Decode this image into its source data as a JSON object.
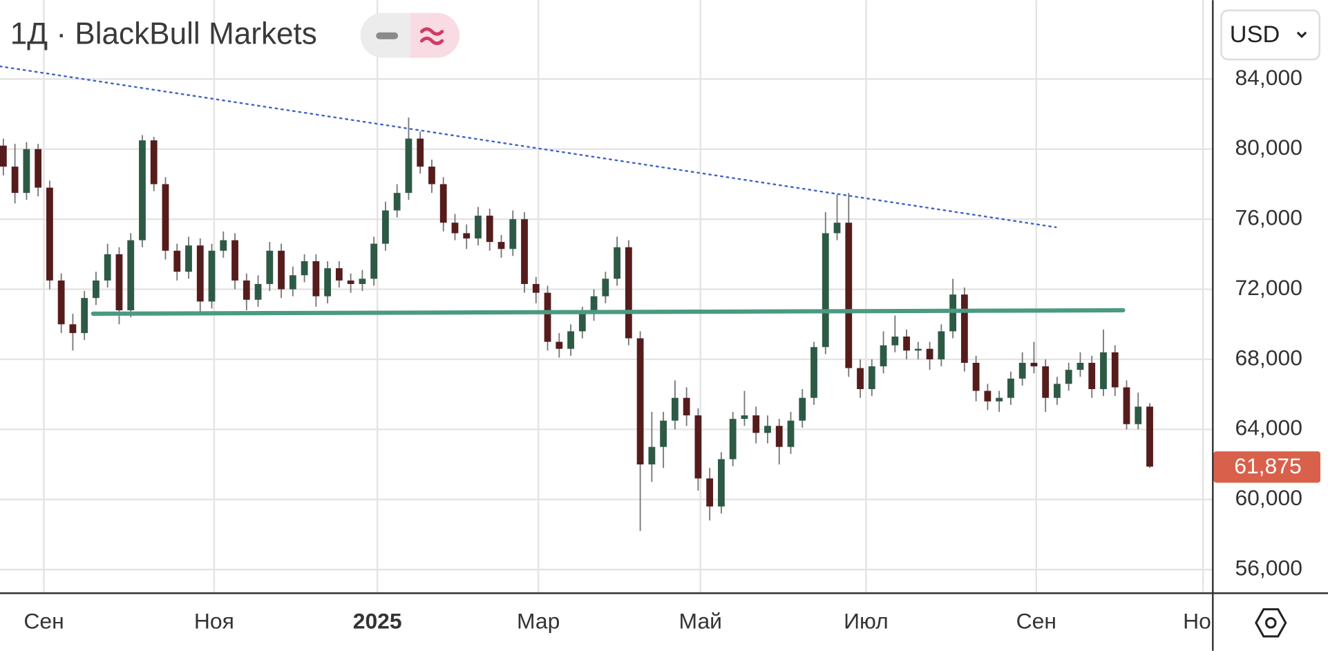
{
  "chart_data": {
    "type": "candlestick",
    "title": "1Д · BlackBull Markets",
    "currency": "USD",
    "xlim": [
      -0.29,
      104.3
    ],
    "xticks": [
      {
        "value": 3.5,
        "label": "Сен"
      },
      {
        "value": 18.2,
        "label": "Ноя"
      },
      {
        "value": 32.3,
        "label": "2025"
      },
      {
        "value": 46.2,
        "label": "Мар"
      },
      {
        "value": 60.2,
        "label": "Май"
      },
      {
        "value": 74.5,
        "label": "Июл"
      },
      {
        "value": 89.2,
        "label": "Сен"
      },
      {
        "value": 103.6,
        "label": "Ноя"
      }
    ],
    "ylim": [
      54650,
      88500
    ],
    "yticks": [
      {
        "value": 56000,
        "label": "56,000"
      },
      {
        "value": 60000,
        "label": "60,000"
      },
      {
        "value": 64000,
        "label": "64,000"
      },
      {
        "value": 68000,
        "label": "68,000"
      },
      {
        "value": 72000,
        "label": "72,000"
      },
      {
        "value": 76000,
        "label": "76,000"
      },
      {
        "value": 80000,
        "label": "80,000"
      },
      {
        "value": 84000,
        "label": "84,000"
      }
    ],
    "grid": true,
    "up_color": "#2d5a45",
    "down_color": "#561c1c",
    "wick_color": "#777777",
    "open": [
      80200,
      79000,
      77500,
      80000,
      77800,
      72500,
      70000,
      69500,
      71500,
      72500,
      74000,
      70800,
      74800,
      80500,
      78000,
      74200,
      73000,
      74500,
      71300,
      74200,
      74800,
      72500,
      71400,
      72300,
      74200,
      72000,
      72800,
      73600,
      71600,
      73200,
      72500,
      72300,
      72600,
      74600,
      76500,
      77500,
      80600,
      79000,
      78000,
      75800,
      75200,
      74900,
      76200,
      74700,
      74300,
      76000,
      72300,
      71800,
      69000,
      68600,
      69600,
      70600,
      71600,
      72600,
      74400,
      69200,
      62000,
      63000,
      64500,
      65800,
      64800,
      61200,
      59600,
      62300,
      64600,
      64800,
      63800,
      64200,
      63000,
      64500,
      65800,
      68700,
      75200,
      75800,
      67500,
      66300,
      67600,
      68800,
      69300,
      68500,
      68600,
      68000,
      69600,
      71700,
      67800,
      66200,
      65600,
      65800,
      66900,
      67800,
      67600,
      65800,
      66600,
      67400,
      67800,
      66300,
      68400,
      66400,
      64300,
      65300
    ],
    "high": [
      80600,
      80300,
      80400,
      80300,
      78200,
      72900,
      70600,
      71900,
      73000,
      74600,
      74400,
      75200,
      80800,
      80700,
      78400,
      74600,
      75000,
      74900,
      74600,
      75300,
      75200,
      72900,
      72800,
      74700,
      74600,
      73300,
      74000,
      74000,
      73600,
      73600,
      72900,
      73100,
      75000,
      77000,
      78000,
      81800,
      81000,
      79400,
      78400,
      76300,
      75700,
      76700,
      76600,
      75100,
      76500,
      76400,
      72700,
      72200,
      69500,
      70000,
      71000,
      72000,
      73000,
      75000,
      74800,
      69600,
      65000,
      65000,
      66800,
      66400,
      65200,
      61800,
      62700,
      65000,
      66200,
      65300,
      64800,
      64600,
      65000,
      66300,
      69000,
      76400,
      77400,
      77500,
      68000,
      68000,
      69600,
      70500,
      69700,
      69000,
      69000,
      70000,
      72600,
      72100,
      68200,
      66600,
      66200,
      67300,
      68400,
      69000,
      68000,
      67000,
      67800,
      68400,
      68200,
      69700,
      68800,
      66800,
      66100,
      65500
    ],
    "low": [
      78500,
      76900,
      77100,
      77300,
      72000,
      69500,
      68500,
      69100,
      71100,
      72100,
      70000,
      70400,
      74400,
      77600,
      73700,
      72500,
      72600,
      70700,
      70900,
      73800,
      72000,
      70800,
      71000,
      71900,
      71500,
      71600,
      72400,
      71000,
      71200,
      72100,
      71800,
      71900,
      72200,
      74200,
      76100,
      77100,
      78600,
      77500,
      75300,
      74800,
      74300,
      74500,
      74200,
      73800,
      73900,
      71800,
      71200,
      68500,
      68100,
      68200,
      69200,
      70200,
      71200,
      72200,
      68800,
      58200,
      61000,
      61800,
      64000,
      64200,
      60500,
      58800,
      59200,
      61900,
      64200,
      63200,
      63200,
      62000,
      62600,
      64100,
      65400,
      68300,
      74800,
      67000,
      65800,
      65900,
      67200,
      68400,
      68000,
      68000,
      67400,
      67600,
      69200,
      67300,
      65600,
      65100,
      65000,
      65400,
      66500,
      67200,
      65000,
      65400,
      66200,
      67000,
      65800,
      65900,
      65900,
      64000,
      64000,
      61800
    ],
    "close": [
      79000,
      77500,
      80000,
      77800,
      72500,
      70000,
      69500,
      71500,
      72500,
      74000,
      70800,
      74800,
      80500,
      78000,
      74200,
      73000,
      74500,
      71300,
      74200,
      74800,
      72500,
      71400,
      72300,
      74200,
      72000,
      72800,
      73600,
      71600,
      73200,
      72500,
      72300,
      72600,
      74600,
      76500,
      77500,
      80600,
      79000,
      78000,
      75800,
      75200,
      74900,
      76200,
      74700,
      74300,
      76000,
      72300,
      71800,
      69000,
      68600,
      69600,
      70600,
      71600,
      72600,
      74400,
      69200,
      62000,
      63000,
      64500,
      65800,
      64800,
      61200,
      59600,
      62300,
      64600,
      64800,
      63800,
      64200,
      63000,
      64500,
      65800,
      68700,
      75200,
      75800,
      67500,
      66300,
      67600,
      68800,
      69300,
      68500,
      68600,
      68000,
      69600,
      71700,
      67800,
      66200,
      65600,
      65800,
      66900,
      67800,
      67600,
      65800,
      66600,
      67400,
      67800,
      66300,
      68400,
      66400,
      64300,
      65300,
      61875
    ],
    "last_price": 61875,
    "last_price_label": "61,875",
    "last_price_color": "#d9604a",
    "drawings": [
      {
        "x": [
          -0.29,
          90.9
        ],
        "y": [
          84725,
          75538
        ],
        "color": "#3f63c8",
        "style": "dotted"
      },
      {
        "x": [
          7.75,
          96.7
        ],
        "y": [
          70605,
          70799
        ],
        "color": "#4a9a82",
        "style": "solid"
      }
    ]
  }
}
